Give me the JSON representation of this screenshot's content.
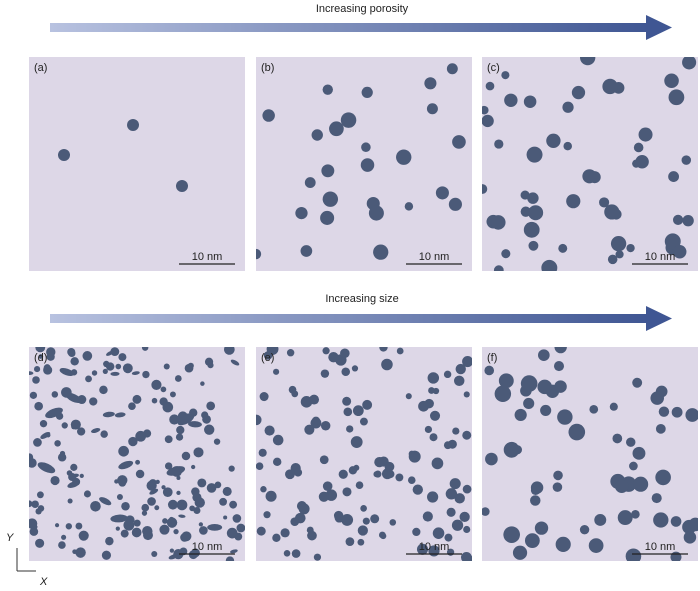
{
  "arrows": [
    {
      "label": "Increasing porosity"
    },
    {
      "label": "Increasing size"
    }
  ],
  "panels": [
    {
      "label": "(a)",
      "scale_bar": "10 nm"
    },
    {
      "label": "(b)",
      "scale_bar": "10 nm"
    },
    {
      "label": "(c)",
      "scale_bar": "10 nm"
    },
    {
      "label": "(d)",
      "scale_bar": "10 nm"
    },
    {
      "label": "(e)",
      "scale_bar": "10 nm"
    },
    {
      "label": "(f)",
      "scale_bar": "10 nm"
    }
  ],
  "axes": {
    "y": "Y",
    "x": "X"
  }
}
